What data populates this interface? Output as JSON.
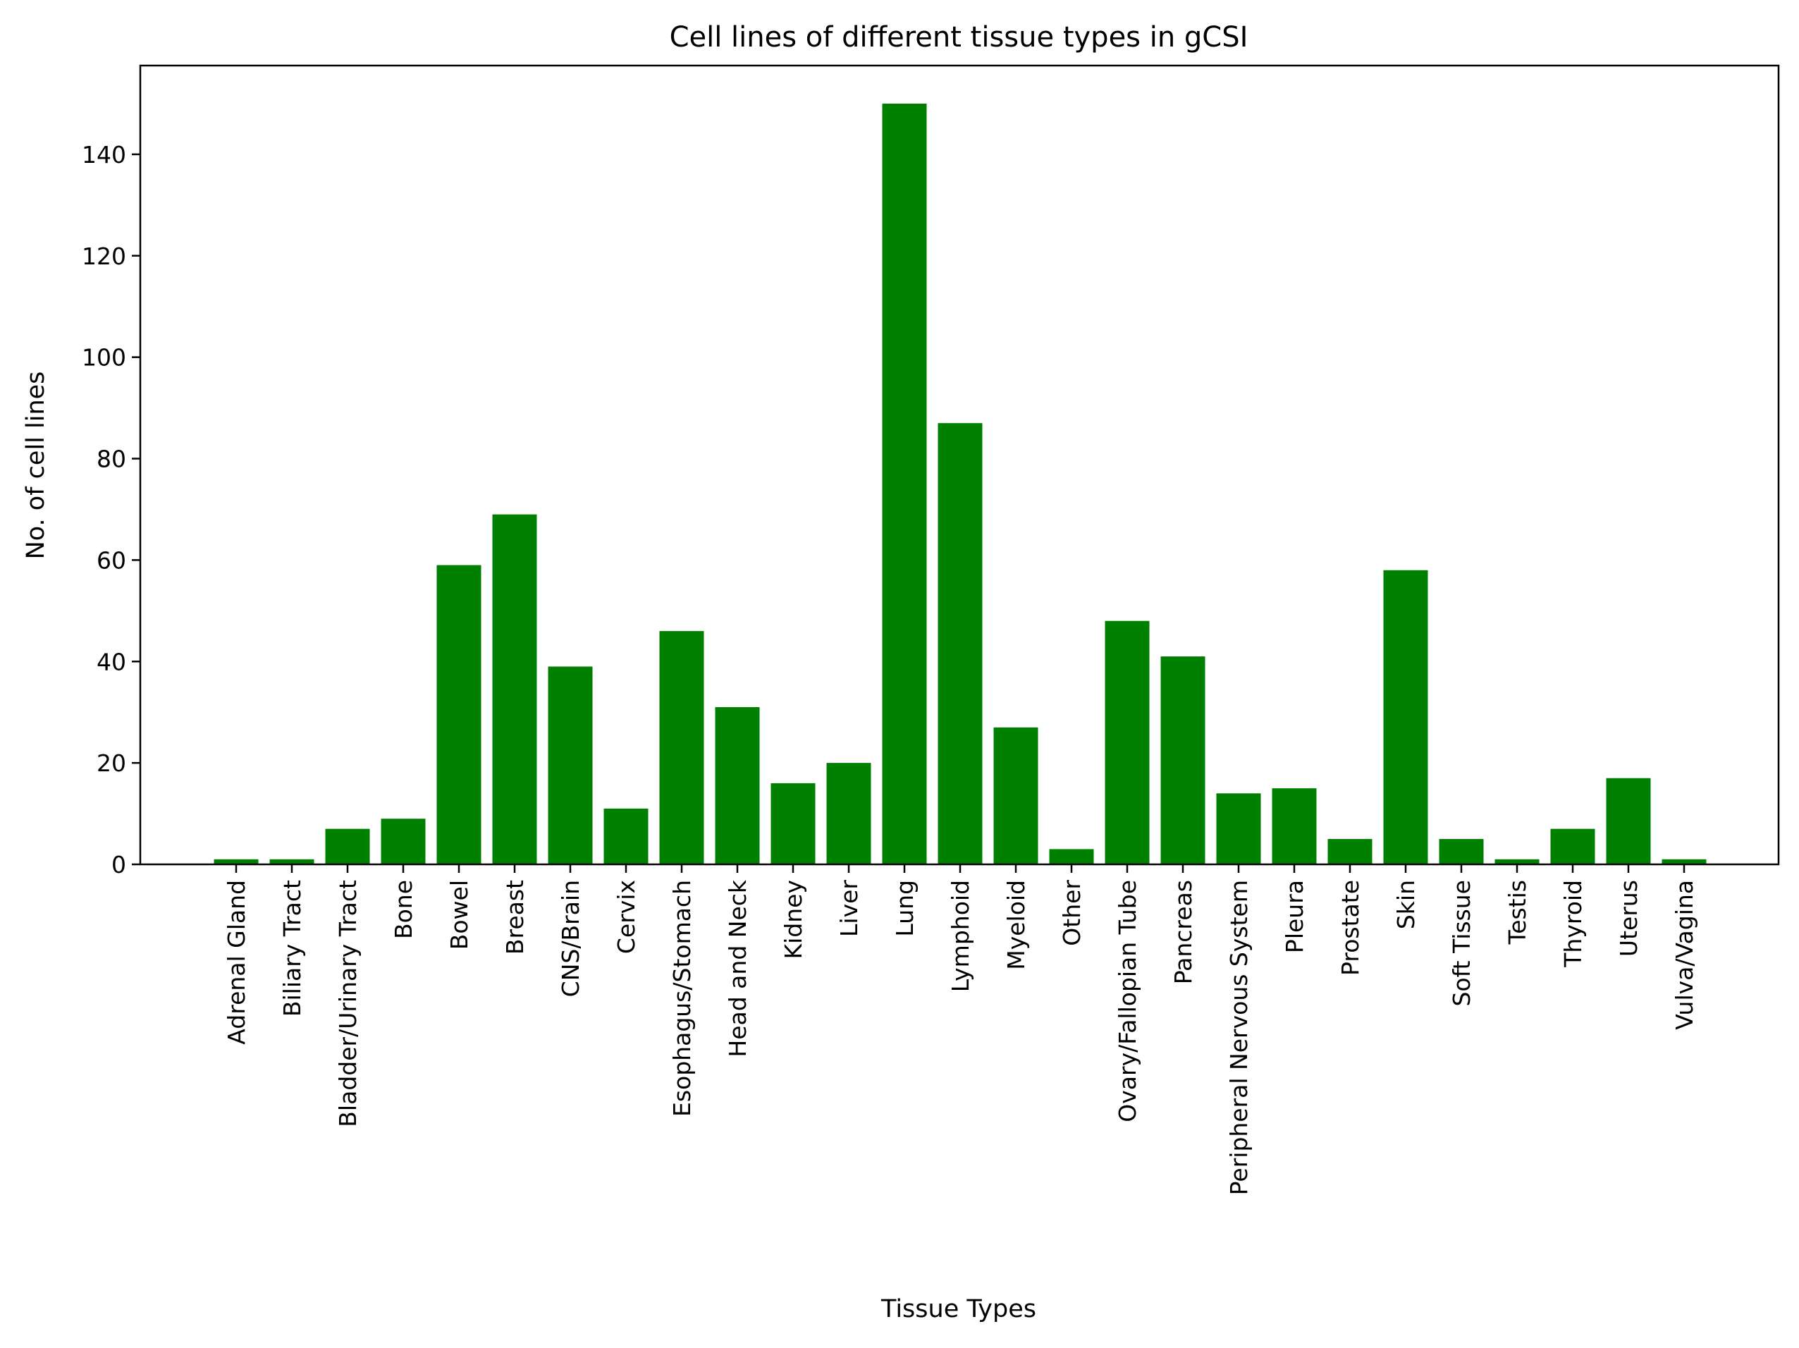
{
  "chart_data": {
    "type": "bar",
    "title": "Cell lines of different tissue types in gCSI",
    "xlabel": "Tissue Types",
    "ylabel": "No. of cell lines",
    "categories": [
      "Adrenal Gland",
      "Biliary Tract",
      "Bladder/Urinary Tract",
      "Bone",
      "Bowel",
      "Breast",
      "CNS/Brain",
      "Cervix",
      "Esophagus/Stomach",
      "Head and Neck",
      "Kidney",
      "Liver",
      "Lung",
      "Lymphoid",
      "Myeloid",
      "Other",
      "Ovary/Fallopian Tube",
      "Pancreas",
      "Peripheral Nervous System",
      "Pleura",
      "Prostate",
      "Skin",
      "Soft Tissue",
      "Testis",
      "Thyroid",
      "Uterus",
      "Vulva/Vagina"
    ],
    "values": [
      1,
      1,
      7,
      9,
      59,
      69,
      39,
      11,
      46,
      31,
      16,
      20,
      150,
      87,
      27,
      3,
      48,
      41,
      14,
      15,
      5,
      58,
      5,
      1,
      7,
      17,
      1
    ],
    "yticks": [
      "0",
      "20",
      "40",
      "60",
      "80",
      "100",
      "120",
      "140"
    ],
    "ylim": [
      0,
      157.5
    ],
    "grid": false,
    "bar_color": "#008000"
  }
}
